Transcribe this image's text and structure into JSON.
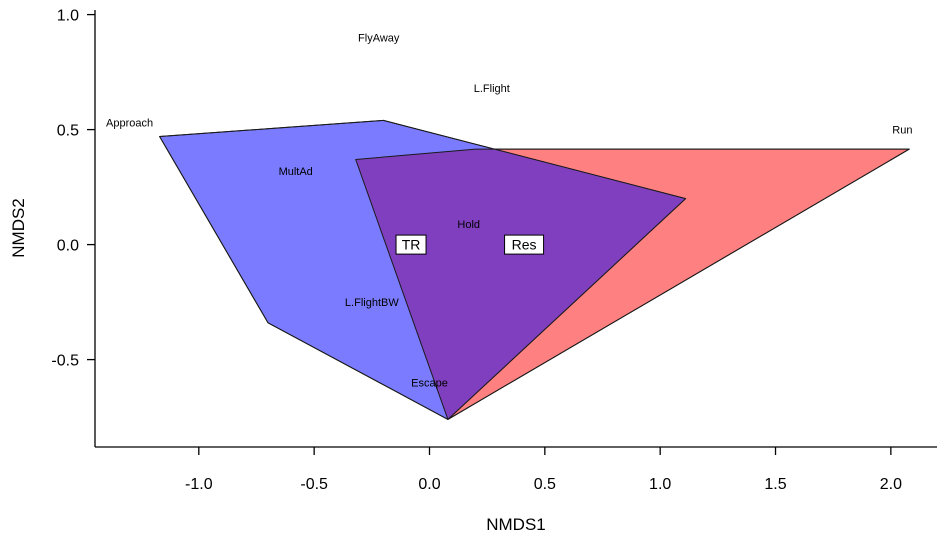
{
  "chart_data": {
    "type": "scatter",
    "xlabel": "NMDS1",
    "ylabel": "NMDS2",
    "xlim": [
      -1.45,
      2.2
    ],
    "ylim": [
      -0.88,
      1.02
    ],
    "xticks": [
      -1.0,
      -0.5,
      0.0,
      0.5,
      1.0,
      1.5,
      2.0
    ],
    "xtick_labels": [
      "-1.0",
      "-0.5",
      "0.0",
      "0.5",
      "1.0",
      "1.5",
      "2.0"
    ],
    "yticks": [
      -0.5,
      0.0,
      0.5,
      1.0
    ],
    "ytick_labels": [
      "-0.5",
      "0.0",
      "0.5",
      "1.0"
    ],
    "grid": false,
    "series": [
      {
        "name": "Res",
        "color": "#ff8080",
        "hull": [
          [
            -0.32,
            0.37
          ],
          [
            0.2,
            0.415
          ],
          [
            2.08,
            0.415
          ],
          [
            0.08,
            -0.76
          ]
        ]
      },
      {
        "name": "TR",
        "color": "#7b7bff",
        "hull": [
          [
            -1.17,
            0.47
          ],
          [
            -0.2,
            0.54
          ],
          [
            1.11,
            0.2
          ],
          [
            0.08,
            -0.76
          ],
          [
            -0.7,
            -0.34
          ]
        ]
      }
    ],
    "overlap_color": "#7f3fbf",
    "centroids": [
      {
        "label": "TR",
        "x": -0.08,
        "y": 0.0
      },
      {
        "label": "Res",
        "x": 0.41,
        "y": 0.0
      }
    ],
    "species": [
      {
        "label": "FlyAway",
        "x": -0.22,
        "y": 0.9
      },
      {
        "label": "L.Flight",
        "x": 0.27,
        "y": 0.68
      },
      {
        "label": "Approach",
        "x": -1.3,
        "y": 0.53
      },
      {
        "label": "Run",
        "x": 2.05,
        "y": 0.5
      },
      {
        "label": "MultAd",
        "x": -0.58,
        "y": 0.32
      },
      {
        "label": "Hold",
        "x": 0.17,
        "y": 0.09
      },
      {
        "label": "L.FlightBW",
        "x": -0.25,
        "y": -0.25
      },
      {
        "label": "Escape",
        "x": 0.0,
        "y": -0.6
      }
    ]
  }
}
